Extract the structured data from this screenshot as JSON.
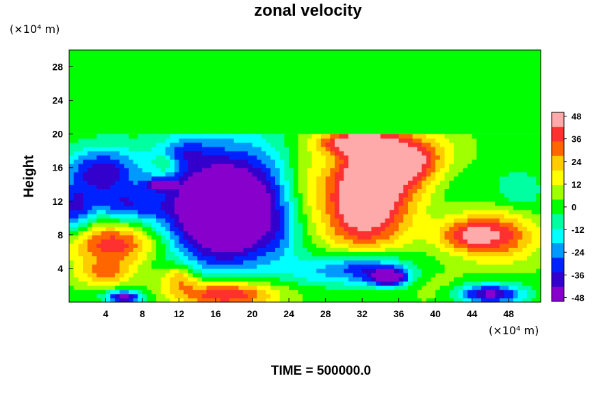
{
  "chart_data": {
    "type": "heatmap",
    "title": "zonal velocity",
    "ylabel": "Height",
    "xlabel": "",
    "x_unit": "(×10⁴ m)",
    "y_unit": "(×10⁴ m)",
    "footer": "TIME = 500000.0",
    "xlim": [
      0,
      51.5
    ],
    "ylim": [
      0,
      30
    ],
    "x_ticks": [
      4,
      8,
      12,
      16,
      20,
      24,
      28,
      32,
      36,
      40,
      44,
      48
    ],
    "y_ticks": [
      4,
      8,
      12,
      16,
      20,
      24,
      28
    ],
    "colorbar": {
      "range": [
        -50,
        50
      ],
      "ticks": [
        48,
        36,
        24,
        12,
        0,
        -12,
        -24,
        -36,
        -48
      ],
      "colors": [
        "#ffaaaa",
        "#ff3030",
        "#ff6600",
        "#ffcc00",
        "#ffff00",
        "#a0ff00",
        "#00ff00",
        "#00ffa0",
        "#00ffff",
        "#0099ff",
        "#0022ff",
        "#3300cc",
        "#8800cc"
      ]
    },
    "background_value": 2,
    "features": [
      {
        "x": 17.0,
        "y": 10.5,
        "rx": 6.0,
        "ry": 6.0,
        "value": -48
      },
      {
        "x": 17.0,
        "y": 12.5,
        "rx": 8.0,
        "ry": 8.0,
        "value": -30
      },
      {
        "x": 3.5,
        "y": 15.5,
        "rx": 4.0,
        "ry": 3.0,
        "value": -38
      },
      {
        "x": 6.0,
        "y": 11.5,
        "rx": 4.0,
        "ry": 2.0,
        "value": -24
      },
      {
        "x": 10.0,
        "y": 14.0,
        "rx": 1.5,
        "ry": 0.6,
        "value": -40
      },
      {
        "x": 10.5,
        "y": 16.5,
        "rx": 1.2,
        "ry": 1.0,
        "value": 20
      },
      {
        "x": 12.5,
        "y": 18.0,
        "rx": 2.5,
        "ry": 1.5,
        "value": -14
      },
      {
        "x": 0.5,
        "y": 11.0,
        "rx": 2.0,
        "ry": 3.0,
        "value": -30
      },
      {
        "x": 32.0,
        "y": 10.5,
        "rx": 5.0,
        "ry": 5.5,
        "value": 42
      },
      {
        "x": 33.0,
        "y": 15.0,
        "rx": 5.0,
        "ry": 5.0,
        "value": 34
      },
      {
        "x": 37.0,
        "y": 17.0,
        "rx": 5.0,
        "ry": 3.0,
        "value": 40
      },
      {
        "x": 31.0,
        "y": 19.0,
        "rx": 4.0,
        "ry": 1.3,
        "value": 40
      },
      {
        "x": 25.5,
        "y": 14.0,
        "rx": 2.5,
        "ry": 5.0,
        "value": 14
      },
      {
        "x": 42.0,
        "y": 15.0,
        "rx": 3.0,
        "ry": 3.0,
        "value": -6
      },
      {
        "x": 47.0,
        "y": 8.0,
        "rx": 4.0,
        "ry": 3.0,
        "value": 38
      },
      {
        "x": 43.0,
        "y": 8.0,
        "rx": 3.0,
        "ry": 2.0,
        "value": 30
      },
      {
        "x": 49.0,
        "y": 13.0,
        "rx": 3.0,
        "ry": 3.0,
        "value": -10
      },
      {
        "x": 5.0,
        "y": 7.0,
        "rx": 5.0,
        "ry": 2.5,
        "value": 42
      },
      {
        "x": 4.0,
        "y": 3.5,
        "rx": 3.0,
        "ry": 1.5,
        "value": 28
      },
      {
        "x": 32.0,
        "y": 4.0,
        "rx": 5.0,
        "ry": 2.0,
        "value": -40
      },
      {
        "x": 35.0,
        "y": 3.0,
        "rx": 2.0,
        "ry": 1.0,
        "value": -48
      },
      {
        "x": 17.0,
        "y": 1.0,
        "rx": 5.5,
        "ry": 1.6,
        "value": 50
      },
      {
        "x": 12.0,
        "y": 3.0,
        "rx": 2.0,
        "ry": 1.5,
        "value": 30
      },
      {
        "x": 26.0,
        "y": 3.5,
        "rx": 2.5,
        "ry": 1.5,
        "value": -6
      },
      {
        "x": 46.0,
        "y": 1.0,
        "rx": 3.5,
        "ry": 1.2,
        "value": -46
      },
      {
        "x": 6.0,
        "y": 0.6,
        "rx": 2.0,
        "ry": 0.8,
        "value": -46
      },
      {
        "x": 40.0,
        "y": 2.0,
        "rx": 3.0,
        "ry": 2.0,
        "value": 8
      },
      {
        "x": 23.0,
        "y": 8.0,
        "rx": 2.0,
        "ry": 3.5,
        "value": -4
      }
    ]
  }
}
